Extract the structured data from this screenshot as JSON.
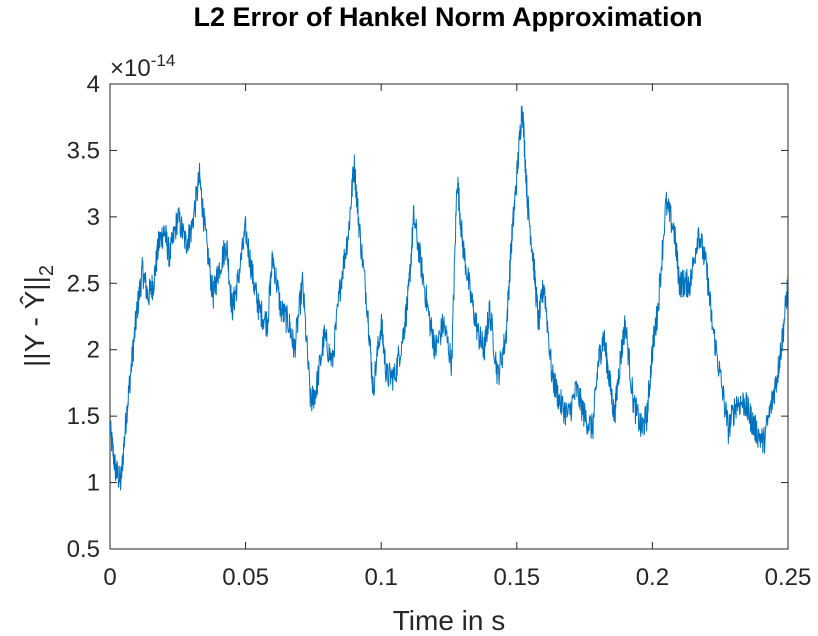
{
  "chart_data": {
    "type": "line",
    "title": "L2 Error of Hankel Norm Approximation",
    "xlabel": "Time in s",
    "ylabel": "||Y - Ŷ||",
    "ylabel_subscript": "2",
    "exponent_prefix": "×10",
    "exponent_power": "-14",
    "xlim": [
      0,
      0.25
    ],
    "ylim": [
      0.5,
      4
    ],
    "xticks": [
      0,
      0.05,
      0.1,
      0.15,
      0.2,
      0.25
    ],
    "xtick_labels": [
      "0",
      "0.05",
      "0.1",
      "0.15",
      "0.2",
      "0.25"
    ],
    "yticks": [
      0.5,
      1,
      1.5,
      2,
      2.5,
      3,
      3.5,
      4
    ],
    "ytick_labels": [
      "0.5",
      "1",
      "1.5",
      "2",
      "2.5",
      "3",
      "3.5",
      "4"
    ],
    "grid": false,
    "line_color": "#0072BD",
    "series": [
      {
        "x": [
          0,
          0.002,
          0.004,
          0.006,
          0.008,
          0.01,
          0.012,
          0.014,
          0.016,
          0.018,
          0.02,
          0.022,
          0.025,
          0.028,
          0.03,
          0.033,
          0.035,
          0.038,
          0.04,
          0.043,
          0.045,
          0.047,
          0.05,
          0.053,
          0.055,
          0.058,
          0.06,
          0.063,
          0.066,
          0.068,
          0.071,
          0.074,
          0.076,
          0.079,
          0.082,
          0.085,
          0.088,
          0.09,
          0.092,
          0.095,
          0.097,
          0.1,
          0.102,
          0.105,
          0.108,
          0.11,
          0.112,
          0.115,
          0.118,
          0.12,
          0.123,
          0.126,
          0.128,
          0.13,
          0.133,
          0.136,
          0.138,
          0.14,
          0.143,
          0.146,
          0.148,
          0.15,
          0.152,
          0.154,
          0.156,
          0.158,
          0.16,
          0.163,
          0.166,
          0.169,
          0.172,
          0.175,
          0.178,
          0.18,
          0.182,
          0.184,
          0.186,
          0.188,
          0.19,
          0.193,
          0.196,
          0.198,
          0.2,
          0.202,
          0.205,
          0.208,
          0.21,
          0.212,
          0.214,
          0.217,
          0.22,
          0.222,
          0.225,
          0.228,
          0.231,
          0.234,
          0.236,
          0.238,
          0.241,
          0.244,
          0.246,
          0.248,
          0.25
        ],
        "y": [
          1.4,
          1.1,
          1.0,
          1.5,
          1.9,
          2.3,
          2.6,
          2.4,
          2.5,
          2.8,
          2.9,
          2.7,
          3.0,
          2.8,
          2.9,
          3.3,
          2.9,
          2.4,
          2.6,
          2.8,
          2.3,
          2.5,
          2.9,
          2.5,
          2.3,
          2.2,
          2.7,
          2.3,
          2.2,
          2.0,
          2.5,
          1.6,
          1.7,
          2.1,
          1.9,
          2.5,
          2.9,
          3.4,
          2.9,
          2.3,
          1.7,
          2.2,
          1.8,
          1.8,
          2.1,
          2.4,
          3.0,
          2.6,
          2.2,
          2.0,
          2.2,
          1.9,
          3.3,
          2.8,
          2.4,
          2.1,
          2.0,
          2.3,
          1.8,
          2.1,
          2.8,
          3.3,
          3.85,
          3.1,
          2.7,
          2.2,
          2.5,
          1.8,
          1.6,
          1.5,
          1.7,
          1.5,
          1.4,
          1.9,
          2.1,
          1.8,
          1.5,
          1.9,
          2.2,
          1.6,
          1.4,
          1.5,
          2.0,
          2.3,
          3.1,
          2.9,
          2.5,
          2.5,
          2.5,
          2.9,
          2.6,
          2.2,
          1.8,
          1.4,
          1.6,
          1.6,
          1.5,
          1.4,
          1.3,
          1.6,
          1.8,
          2.1,
          2.5
        ]
      }
    ]
  }
}
